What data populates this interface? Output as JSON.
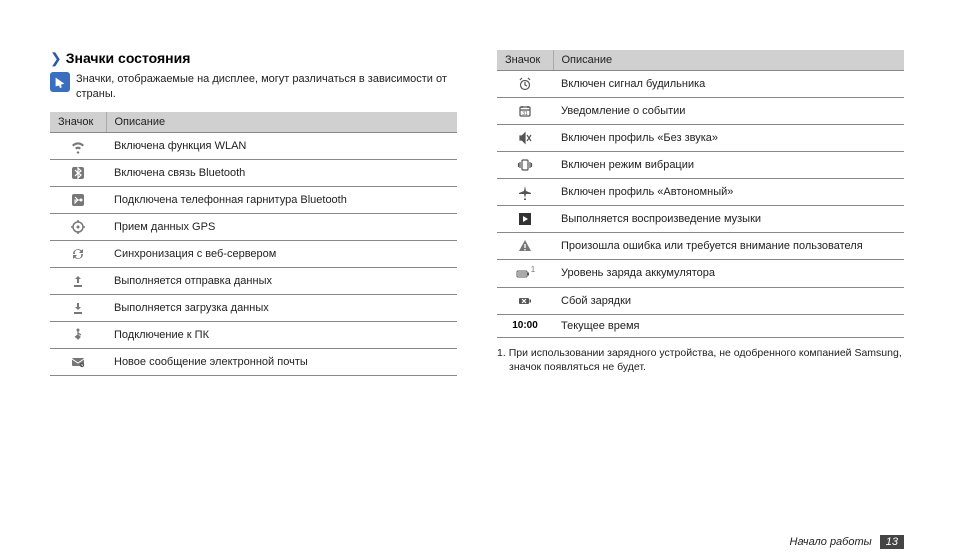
{
  "heading": {
    "title": "Значки состояния"
  },
  "note": {
    "text": "Значки, отображаемые на дисплее, могут различаться в зависимости от страны."
  },
  "table": {
    "header_icon": "Значок",
    "header_desc": "Описание"
  },
  "left_rows": [
    {
      "icon": "wifi",
      "desc": "Включена функция WLAN"
    },
    {
      "icon": "bluetooth",
      "desc": "Включена связь Bluetooth"
    },
    {
      "icon": "bt-headset",
      "desc": "Подключена телефонная гарнитура Bluetooth"
    },
    {
      "icon": "gps",
      "desc": "Прием данных GPS"
    },
    {
      "icon": "sync",
      "desc": "Синхронизация с веб-сервером"
    },
    {
      "icon": "upload",
      "desc": "Выполняется отправка данных"
    },
    {
      "icon": "download",
      "desc": "Выполняется загрузка данных"
    },
    {
      "icon": "usb",
      "desc": "Подключение к ПК"
    },
    {
      "icon": "mail",
      "desc": "Новое сообщение электронной почты"
    }
  ],
  "right_rows": [
    {
      "icon": "alarm",
      "desc": "Включен сигнал будильника"
    },
    {
      "icon": "event",
      "desc": "Уведомление о событии"
    },
    {
      "icon": "mute",
      "desc": "Включен профиль «Без звука»"
    },
    {
      "icon": "vibrate",
      "desc": "Включен режим вибрации"
    },
    {
      "icon": "airplane",
      "desc": "Включен профиль «Автономный»"
    },
    {
      "icon": "play",
      "desc": "Выполняется воспроизведение музыки"
    },
    {
      "icon": "warning",
      "desc": "Произошла ошибка или требуется внимание пользователя"
    },
    {
      "icon": "battery",
      "desc": "Уровень заряда аккумулятора",
      "fn": "1"
    },
    {
      "icon": "battery-fail",
      "desc": "Сбой зарядки"
    },
    {
      "icon": "time",
      "desc": "Текущее время",
      "time": "10:00"
    }
  ],
  "footnote": {
    "num": "1.",
    "text": "При использовании зарядного устройства, не одобренного компанией Samsung, значок появляться не будет."
  },
  "footer": {
    "section": "Начало работы",
    "page": "13"
  }
}
